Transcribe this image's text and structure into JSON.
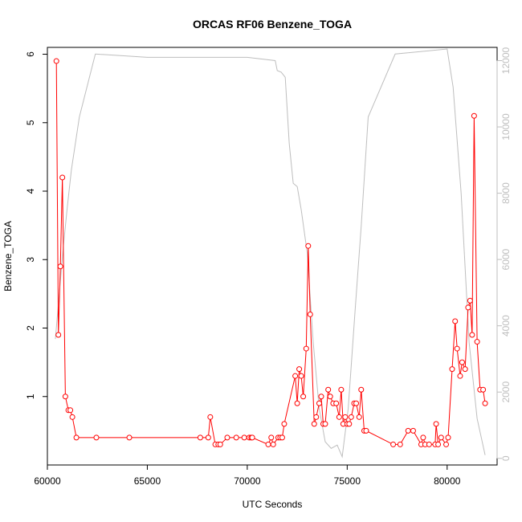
{
  "chart_data": {
    "type": "line",
    "title": "ORCAS RF06 Benzene_TOGA",
    "xlabel": "UTC Seconds",
    "ylabel": "Benzene_TOGA",
    "xlim": [
      60000,
      82500
    ],
    "ylim": [
      0,
      6.1
    ],
    "y2lim": [
      -200,
      12400
    ],
    "xticks": [
      60000,
      65000,
      70000,
      75000,
      80000
    ],
    "yticks": [
      1,
      2,
      3,
      4,
      5,
      6
    ],
    "y2ticks": [
      0,
      2000,
      4000,
      6000,
      8000,
      10000,
      12000
    ],
    "grid": false,
    "series": [
      {
        "color": "#ff0000",
        "axis": "left",
        "markers": "open-circle",
        "x": [
          60450,
          60550,
          60650,
          60750,
          60900,
          61050,
          61150,
          61250,
          61450,
          62450,
          64100,
          67650,
          68050,
          68150,
          68400,
          68550,
          68650,
          69000,
          69450,
          69850,
          70100,
          70200,
          70250,
          71050,
          71200,
          71300,
          71550,
          71650,
          71750,
          71850,
          72400,
          72500,
          72600,
          72700,
          72800,
          72950,
          73050,
          73150,
          73350,
          73450,
          73600,
          73700,
          73800,
          73900,
          74050,
          74150,
          74300,
          74450,
          74600,
          74700,
          74800,
          74900,
          75000,
          75100,
          75200,
          75350,
          75450,
          75600,
          75700,
          75850,
          75950,
          77300,
          77650,
          78050,
          78300,
          78700,
          78800,
          78900,
          79100,
          79400,
          79450,
          79550,
          79700,
          79950,
          80050,
          80250,
          80400,
          80500,
          80650,
          80750,
          80900,
          81050,
          81150,
          81250,
          81350,
          81500,
          81650,
          81800,
          81900
        ],
        "y": [
          5.9,
          1.9,
          2.9,
          4.2,
          1.0,
          0.8,
          0.8,
          0.7,
          0.4,
          0.4,
          0.4,
          0.4,
          0.4,
          0.7,
          0.3,
          0.3,
          0.3,
          0.4,
          0.4,
          0.4,
          0.4,
          0.4,
          0.4,
          0.3,
          0.4,
          0.3,
          0.4,
          0.4,
          0.4,
          0.6,
          1.3,
          0.9,
          1.4,
          1.3,
          1.0,
          1.7,
          3.2,
          2.2,
          0.6,
          0.7,
          0.9,
          1.0,
          0.6,
          0.6,
          1.1,
          1.0,
          0.9,
          0.9,
          0.7,
          1.1,
          0.6,
          0.7,
          0.6,
          0.6,
          0.7,
          0.9,
          0.9,
          0.7,
          1.1,
          0.5,
          0.5,
          0.3,
          0.3,
          0.5,
          0.5,
          0.3,
          0.4,
          0.3,
          0.3,
          0.3,
          0.6,
          0.3,
          0.4,
          0.3,
          0.4,
          1.4,
          2.1,
          1.7,
          1.3,
          1.5,
          1.4,
          2.3,
          2.4,
          1.9,
          5.1,
          1.8,
          1.1,
          1.1,
          0.9
        ]
      },
      {
        "color": "#bebebe",
        "axis": "right",
        "markers": "none",
        "x": [
          60400,
          60600,
          60800,
          61000,
          61200,
          61600,
          62400,
          65000,
          68000,
          70000,
          71400,
          71500,
          71700,
          71900,
          72100,
          72300,
          72500,
          72700,
          73000,
          73300,
          73600,
          73900,
          74200,
          74500,
          74750,
          75050,
          75400,
          75700,
          76050,
          77400,
          80000,
          80300,
          80700,
          81100,
          81500,
          81900
        ],
        "y": [
          3600,
          5000,
          6400,
          7600,
          8700,
          10300,
          12200,
          12100,
          12100,
          12100,
          12000,
          11700,
          11650,
          11500,
          9500,
          8300,
          8200,
          7500,
          6200,
          3500,
          1500,
          500,
          300,
          400,
          50,
          1500,
          4500,
          7000,
          10300,
          12200,
          12350,
          11200,
          8000,
          3500,
          1200,
          100
        ]
      }
    ]
  }
}
